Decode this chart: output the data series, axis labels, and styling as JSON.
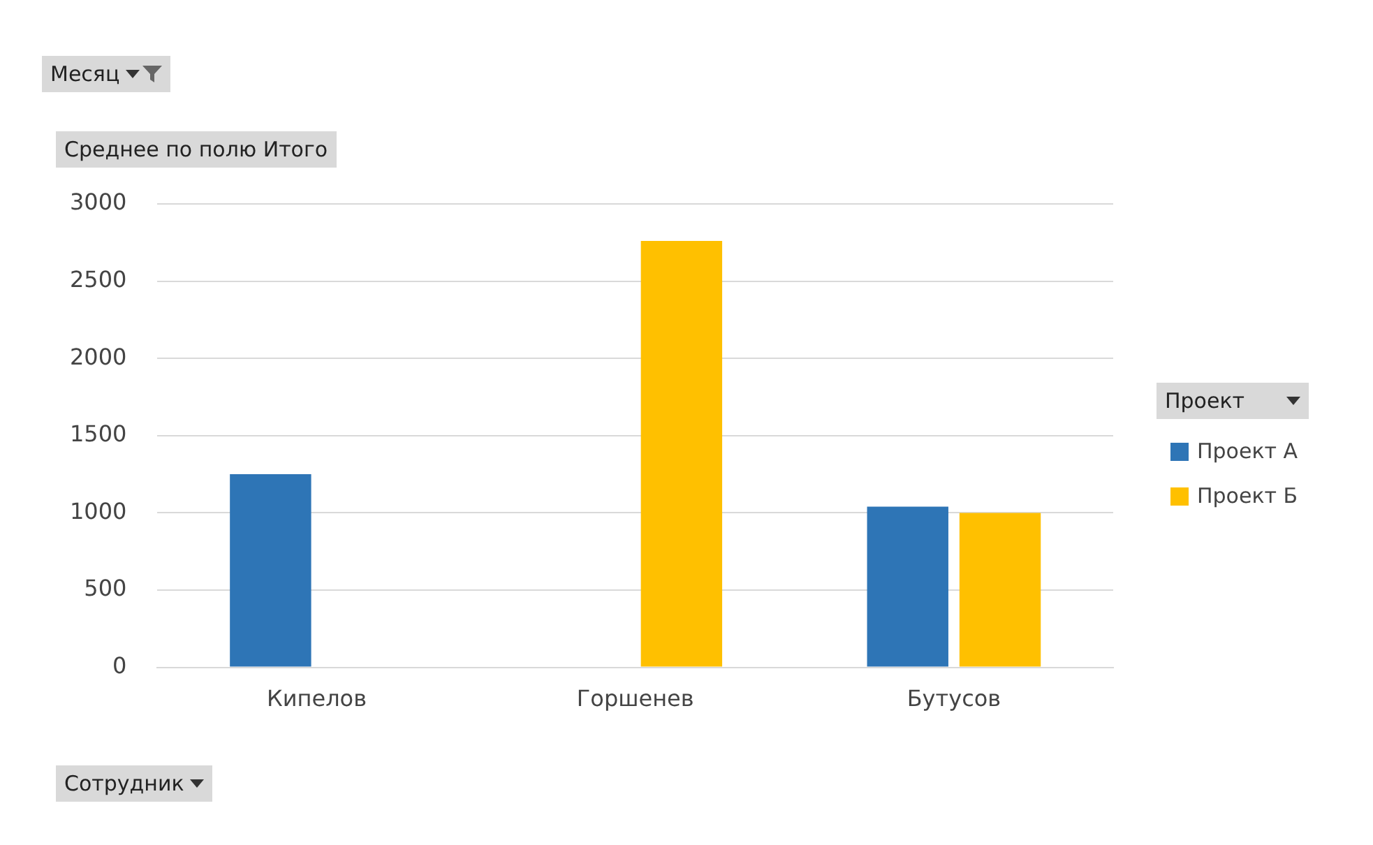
{
  "chart_data": {
    "type": "bar",
    "categories": [
      "Кипелов",
      "Горшенев",
      "Бутусов"
    ],
    "series": [
      {
        "name": "Проект А",
        "color": "#2e75b6",
        "values": [
          1250,
          null,
          1040
        ]
      },
      {
        "name": "Проект Б",
        "color": "#ffc000",
        "values": [
          null,
          2760,
          1000
        ]
      }
    ],
    "ylim": [
      0,
      3000
    ],
    "yticks": [
      0,
      500,
      1000,
      1500,
      2000,
      2500,
      3000
    ],
    "grid": "y",
    "legend": "right",
    "legend_title": "Проект",
    "annotations": [
      "Месяц",
      "Среднее по полю Итого",
      "Сотрудник"
    ]
  }
}
